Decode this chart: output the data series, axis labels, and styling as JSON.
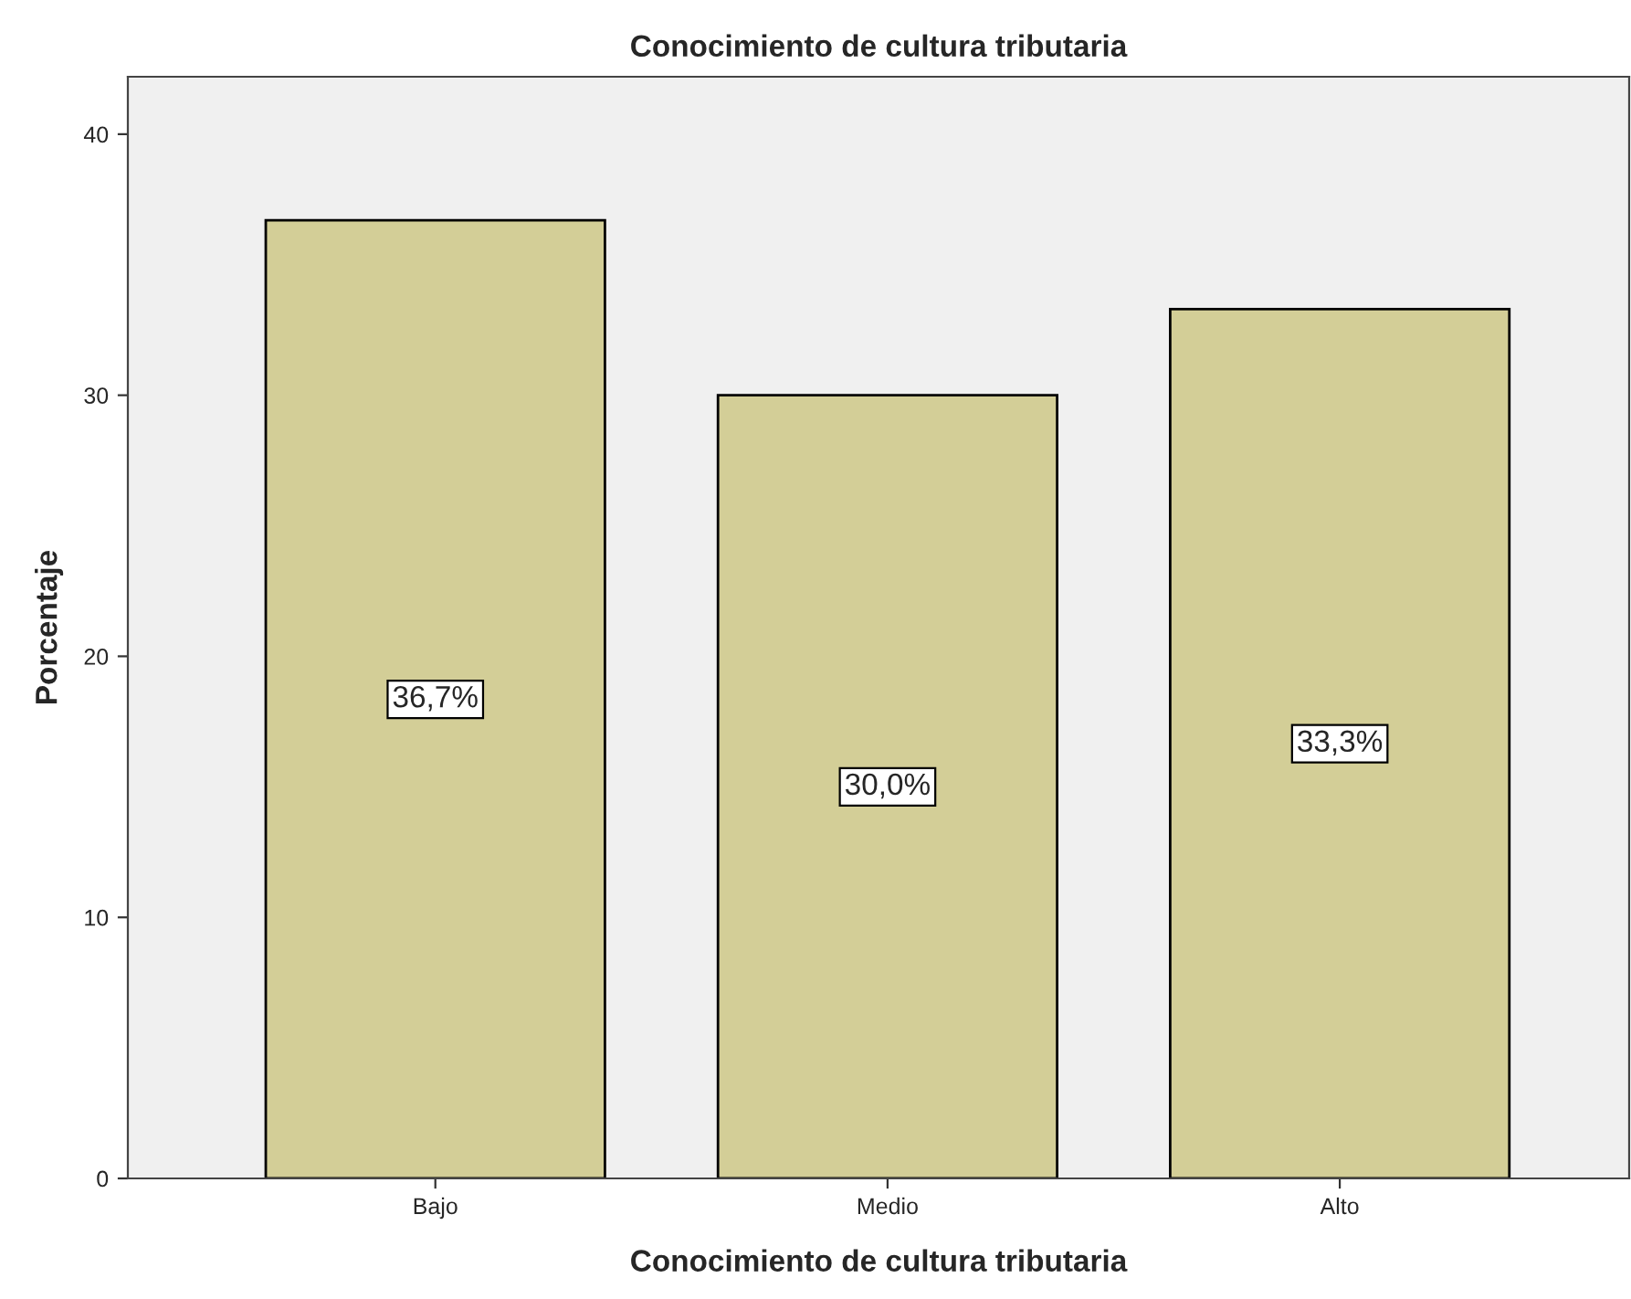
{
  "chart_data": {
    "type": "bar",
    "title": "Conocimiento de cultura tributaria",
    "xlabel": "Conocimiento de cultura tributaria",
    "ylabel": "Porcentaje",
    "categories": [
      "Bajo",
      "Medio",
      "Alto"
    ],
    "values": [
      36.7,
      30.0,
      33.3
    ],
    "value_labels": [
      "36,7%",
      "30,0%",
      "33,3%"
    ],
    "color": "#d3ce97",
    "ylim": [
      0,
      42.2
    ],
    "yticks": [
      0,
      10,
      20,
      30,
      40
    ],
    "grid": false,
    "legend": false
  }
}
